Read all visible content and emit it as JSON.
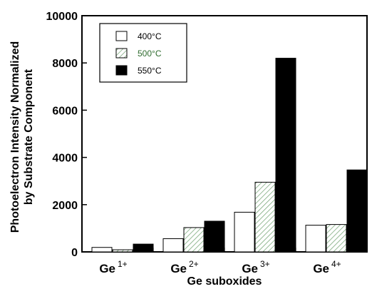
{
  "chart_data": {
    "type": "bar",
    "categories": [
      {
        "base": "Ge",
        "sup": "1+"
      },
      {
        "base": "Ge",
        "sup": "2+"
      },
      {
        "base": "Ge",
        "sup": "3+"
      },
      {
        "base": "Ge",
        "sup": "4+"
      }
    ],
    "series": [
      {
        "name": "400°C",
        "values": [
          190,
          560,
          1680,
          1130
        ],
        "fill": "#ffffff",
        "text_color": "#000000"
      },
      {
        "name": "500°C",
        "values": [
          90,
          1030,
          2950,
          1160
        ],
        "fill": "hatch",
        "text_color": "#2e6b2e"
      },
      {
        "name": "550°C",
        "values": [
          330,
          1300,
          8200,
          3470
        ],
        "fill": "#000000",
        "text_color": "#000000"
      }
    ],
    "xlabel": "Ge suboxides",
    "ylabel_lines": [
      "Photoelectron Intensity Normalized",
      "by Substrate Component"
    ],
    "ylim": [
      0,
      10000
    ],
    "yticks": [
      "0",
      "2000",
      "4000",
      "6000",
      "8000",
      "10000"
    ],
    "ytick_values": [
      0,
      2000,
      4000,
      6000,
      8000,
      10000
    ],
    "legend_position": "top-left",
    "grid": false
  }
}
